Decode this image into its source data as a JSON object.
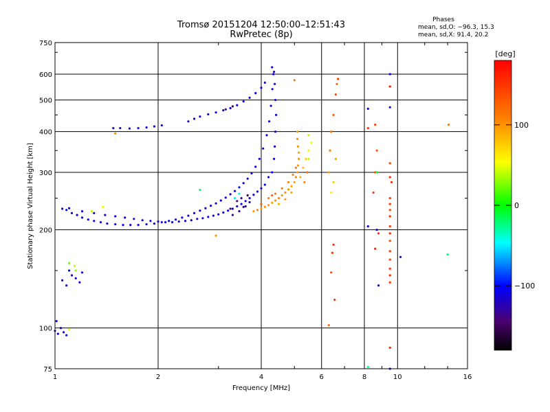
{
  "title_line1": "Tromsø 20151204 12:50:00–12:51:43",
  "title_line2": "RwPretec (8p)",
  "phases": {
    "heading": "Phases",
    "line_o": "mean, sd,O: −96.3, 15.3",
    "line_x": "mean, sd,X:  91.4, 20.2"
  },
  "colorbar": {
    "label": "[deg]",
    "min": -180,
    "max": 180,
    "ticks": [
      {
        "value": 100,
        "label": "100"
      },
      {
        "value": 0,
        "label": "0"
      },
      {
        "value": -100,
        "label": "−100"
      }
    ]
  },
  "chart_data": {
    "type": "scatter",
    "title": "Tromsø 20151204 12:50:00–12:51:43",
    "subtitle": "RwPretec (8p)",
    "xlabel": "Frequency [MHz]",
    "ylabel": "Stationary phase Virtual Height [km]",
    "x_scale": "log",
    "y_scale": "log",
    "xlim": [
      1,
      16
    ],
    "ylim": [
      75,
      750
    ],
    "x_ticks": [
      {
        "value": 1,
        "label": "1"
      },
      {
        "value": 2,
        "label": "2"
      },
      {
        "value": 4,
        "label": "4"
      },
      {
        "value": 6,
        "label": "6"
      },
      {
        "value": 8,
        "label": "8"
      },
      {
        "value": 10,
        "label": "10"
      },
      {
        "value": 16,
        "label": "16"
      }
    ],
    "y_ticks": [
      {
        "value": 75,
        "label": "75"
      },
      {
        "value": 100,
        "label": "100"
      },
      {
        "value": 200,
        "label": "200"
      },
      {
        "value": 300,
        "label": "300"
      },
      {
        "value": 400,
        "label": "400"
      },
      {
        "value": 500,
        "label": "500"
      },
      {
        "value": 600,
        "label": "600"
      },
      {
        "value": 750,
        "label": "750"
      }
    ],
    "grid": true,
    "color_variable": "phase [deg]",
    "series": [
      {
        "points": [
          [
            1.08,
            230,
            -100
          ],
          [
            1.12,
            225,
            -110
          ],
          [
            1.16,
            222,
            -105
          ],
          [
            1.2,
            218,
            -110
          ],
          [
            1.25,
            215,
            -108
          ],
          [
            1.3,
            213,
            -112
          ],
          [
            1.36,
            211,
            -110
          ],
          [
            1.42,
            209,
            -115
          ],
          [
            1.5,
            208,
            -110
          ],
          [
            1.58,
            207,
            -112
          ],
          [
            1.66,
            207,
            -110
          ],
          [
            1.75,
            207,
            -108
          ],
          [
            1.85,
            208,
            -110
          ],
          [
            1.95,
            209,
            -112
          ],
          [
            2.05,
            211,
            -110
          ],
          [
            2.15,
            213,
            -108
          ],
          [
            2.25,
            215,
            -110
          ],
          [
            2.35,
            218,
            -105
          ],
          [
            2.45,
            221,
            -110
          ],
          [
            2.55,
            225,
            -108
          ],
          [
            2.65,
            229,
            -110
          ],
          [
            2.75,
            233,
            -112
          ],
          [
            2.85,
            237,
            -108
          ],
          [
            2.95,
            241,
            -110
          ],
          [
            3.05,
            246,
            -112
          ],
          [
            3.15,
            251,
            -108
          ],
          [
            3.25,
            257,
            -110
          ],
          [
            3.35,
            263,
            -112
          ],
          [
            3.45,
            270,
            -108
          ],
          [
            3.55,
            278,
            -110
          ],
          [
            3.65,
            287,
            -112
          ],
          [
            3.75,
            298,
            -108
          ],
          [
            3.85,
            312,
            -110
          ],
          [
            3.95,
            330,
            -112
          ],
          [
            4.05,
            355,
            -110
          ],
          [
            4.15,
            390,
            -108
          ],
          [
            4.22,
            430,
            -112
          ],
          [
            4.27,
            480,
            -110
          ],
          [
            4.31,
            540,
            -108
          ],
          [
            4.34,
            600,
            -112
          ],
          [
            4.3,
            630,
            -110
          ],
          [
            4.36,
            610,
            -115
          ],
          [
            4.38,
            560,
            -110
          ],
          [
            4.4,
            500,
            -112
          ],
          [
            4.42,
            450,
            -108
          ],
          [
            4.4,
            400,
            -110
          ],
          [
            4.38,
            360,
            -112
          ],
          [
            4.36,
            330,
            -108
          ],
          [
            4.3,
            300,
            -110
          ],
          [
            4.2,
            290,
            -112
          ],
          [
            4.1,
            275,
            -110
          ],
          [
            4.0,
            268,
            -112
          ],
          [
            3.9,
            262,
            -108
          ],
          [
            3.8,
            256,
            -110
          ],
          [
            3.7,
            250,
            -112
          ],
          [
            3.6,
            245,
            -108
          ],
          [
            3.5,
            240,
            -110
          ],
          [
            3.4,
            236,
            -112
          ],
          [
            3.3,
            232,
            -108
          ],
          [
            3.2,
            229,
            -110
          ],
          [
            3.1,
            226,
            -112
          ],
          [
            3.0,
            223,
            -110
          ],
          [
            2.9,
            221,
            -108
          ],
          [
            2.8,
            219,
            -110
          ],
          [
            2.7,
            217,
            -112
          ],
          [
            2.6,
            216,
            -110
          ],
          [
            2.5,
            214,
            -108
          ],
          [
            2.4,
            213,
            -110
          ],
          [
            2.3,
            212,
            -112
          ],
          [
            2.2,
            211,
            -110
          ],
          [
            2.1,
            211,
            -108
          ],
          [
            2.0,
            212,
            -110
          ],
          [
            1.9,
            213,
            -112
          ],
          [
            1.8,
            214,
            -110
          ],
          [
            1.7,
            216,
            -108
          ],
          [
            1.6,
            218,
            -110
          ],
          [
            1.5,
            220,
            -112
          ],
          [
            1.4,
            222,
            -110
          ],
          [
            1.3,
            225,
            -108
          ],
          [
            1.2,
            228,
            -110
          ],
          [
            1.1,
            233,
            -112
          ],
          [
            1.05,
            232,
            -110
          ],
          [
            3.55,
            235,
            -130
          ],
          [
            3.45,
            228,
            -135
          ],
          [
            3.3,
            222,
            -130
          ],
          [
            3.7,
            243,
            -125
          ],
          [
            3.6,
            236,
            -140
          ],
          [
            3.25,
            232,
            -145
          ],
          [
            3.5,
            250,
            -140
          ],
          [
            3.65,
            255,
            -150
          ],
          [
            3.4,
            245,
            -135
          ],
          [
            1.48,
            410,
            -110
          ],
          [
            1.55,
            410,
            -108
          ],
          [
            1.65,
            409,
            -112
          ],
          [
            1.75,
            410,
            -110
          ],
          [
            1.85,
            412,
            -108
          ],
          [
            1.95,
            415,
            -110
          ],
          [
            2.05,
            418,
            -112
          ],
          [
            2.45,
            430,
            -110
          ],
          [
            2.55,
            438,
            -108
          ],
          [
            2.65,
            445,
            -112
          ],
          [
            2.8,
            452,
            -110
          ],
          [
            2.95,
            458,
            -108
          ],
          [
            3.1,
            465,
            -112
          ],
          [
            3.25,
            472,
            -110
          ],
          [
            3.4,
            482,
            -108
          ],
          [
            3.55,
            495,
            -112
          ],
          [
            3.7,
            508,
            -110
          ],
          [
            3.85,
            525,
            -108
          ],
          [
            4.0,
            545,
            -112
          ],
          [
            4.1,
            565,
            -110
          ],
          [
            3.15,
            468,
            -140
          ],
          [
            3.3,
            478,
            -150
          ],
          [
            1.05,
            140,
            -110
          ],
          [
            1.08,
            135,
            -108
          ],
          [
            1.1,
            150,
            -112
          ],
          [
            1.12,
            145,
            -110
          ],
          [
            1.15,
            142,
            -108
          ],
          [
            1.18,
            138,
            -112
          ],
          [
            1.2,
            148,
            -110
          ],
          [
            1.1,
            158,
            20
          ],
          [
            1.14,
            155,
            40
          ],
          [
            1.0,
            98,
            -110
          ],
          [
            1.02,
            96,
            -108
          ],
          [
            1.04,
            100,
            -112
          ],
          [
            1.06,
            97,
            -110
          ],
          [
            1.08,
            95,
            -108
          ],
          [
            1.01,
            105,
            -115
          ],
          [
            1.1,
            99,
            50
          ]
        ]
      },
      {
        "points": [
          [
            3.8,
            228,
            100
          ],
          [
            3.9,
            230,
            105
          ],
          [
            4.0,
            232,
            98
          ],
          [
            4.1,
            235,
            100
          ],
          [
            4.2,
            238,
            102
          ],
          [
            4.3,
            242,
            95
          ],
          [
            4.4,
            246,
            100
          ],
          [
            4.5,
            250,
            105
          ],
          [
            4.6,
            255,
            98
          ],
          [
            4.7,
            260,
            100
          ],
          [
            4.8,
            266,
            102
          ],
          [
            4.9,
            272,
            95
          ],
          [
            5.0,
            280,
            100
          ],
          [
            5.05,
            290,
            105
          ],
          [
            5.1,
            300,
            98
          ],
          [
            5.12,
            315,
            100
          ],
          [
            5.15,
            330,
            102
          ],
          [
            5.15,
            345,
            95
          ],
          [
            5.12,
            360,
            100
          ],
          [
            5.1,
            380,
            105
          ],
          [
            5.1,
            400,
            98
          ],
          [
            4.2,
            250,
            110
          ],
          [
            4.4,
            258,
            108
          ],
          [
            4.6,
            268,
            112
          ],
          [
            4.8,
            280,
            110
          ],
          [
            4.95,
            295,
            108
          ],
          [
            5.05,
            310,
            112
          ],
          [
            4.5,
            240,
            90
          ],
          [
            4.7,
            248,
            95
          ],
          [
            4.9,
            260,
            92
          ],
          [
            5.2,
            290,
            85
          ],
          [
            5.3,
            310,
            80
          ],
          [
            5.4,
            330,
            70
          ],
          [
            5.5,
            350,
            60
          ],
          [
            5.6,
            370,
            50
          ],
          [
            5.5,
            390,
            40
          ],
          [
            5.35,
            280,
            110
          ],
          [
            5.45,
            300,
            120
          ],
          [
            4.0,
            240,
            130
          ],
          [
            4.3,
            255,
            125
          ],
          [
            6.3,
            300,
            100
          ],
          [
            6.35,
            350,
            110
          ],
          [
            6.4,
            400,
            120
          ],
          [
            6.5,
            450,
            130
          ],
          [
            6.6,
            520,
            140
          ],
          [
            6.65,
            560,
            125
          ],
          [
            6.7,
            580,
            150
          ],
          [
            6.4,
            260,
            60
          ],
          [
            6.5,
            280,
            80
          ],
          [
            6.6,
            330,
            95
          ],
          [
            5.0,
            575,
            115
          ],
          [
            8.5,
            260,
            150
          ],
          [
            8.6,
            300,
            140
          ],
          [
            8.7,
            350,
            130
          ],
          [
            8.6,
            420,
            145
          ],
          [
            9.5,
            250,
            150
          ],
          [
            9.5,
            290,
            155
          ],
          [
            9.5,
            320,
            140
          ],
          [
            9.6,
            280,
            160
          ],
          [
            9.5,
            240,
            150
          ],
          [
            9.5,
            230,
            145
          ],
          [
            9.5,
            220,
            155
          ],
          [
            9.5,
            205,
            150
          ],
          [
            9.5,
            195,
            160
          ],
          [
            9.5,
            185,
            140
          ],
          [
            9.5,
            172,
            150
          ],
          [
            9.5,
            162,
            145
          ],
          [
            9.5,
            152,
            155
          ],
          [
            9.5,
            145,
            160
          ],
          [
            9.5,
            138,
            150
          ],
          [
            8.8,
            195,
            150
          ],
          [
            8.6,
            175,
            160
          ],
          [
            6.45,
            170,
            150
          ],
          [
            6.4,
            148,
            140
          ],
          [
            6.55,
            122,
            150
          ],
          [
            6.3,
            102,
            120
          ],
          [
            9.5,
            87,
            160
          ],
          [
            9.5,
            550,
            165
          ],
          [
            8.2,
            410,
            150
          ],
          [
            6.5,
            180,
            155
          ],
          [
            1.5,
            395,
            105
          ],
          [
            2.95,
            192,
            100
          ]
        ]
      },
      {
        "points": [
          [
            9.5,
            600,
            -110
          ],
          [
            9.5,
            475,
            -120
          ],
          [
            8.2,
            470,
            -110
          ],
          [
            8.2,
            205,
            -115
          ],
          [
            8.8,
            135,
            -110
          ],
          [
            8.7,
            300,
            -5
          ],
          [
            9.5,
            75,
            -120
          ],
          [
            8.7,
            200,
            -110
          ],
          [
            10.2,
            165,
            -110
          ],
          [
            14.0,
            168,
            -20
          ],
          [
            14.1,
            420,
            110
          ],
          [
            8.2,
            76,
            -20
          ],
          [
            5.5,
            330,
            40
          ],
          [
            3.35,
            250,
            -50
          ],
          [
            3.45,
            258,
            -40
          ],
          [
            2.65,
            265,
            -20
          ],
          [
            1.28,
            228,
            40
          ],
          [
            1.38,
            235,
            50
          ],
          [
            1.15,
            150,
            30
          ]
        ]
      }
    ]
  }
}
